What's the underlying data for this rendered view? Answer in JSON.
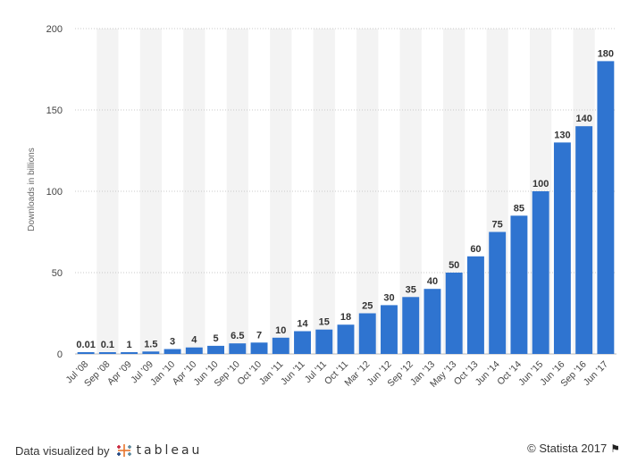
{
  "chart_data": {
    "type": "bar",
    "ylabel": "Downloads in billions",
    "ylim": [
      0,
      200
    ],
    "yticks": [
      0,
      50,
      100,
      150,
      200
    ],
    "categories": [
      "Jul '08",
      "Sep '08",
      "Apr '09",
      "Jul '09",
      "Jan '10",
      "Apr '10",
      "Jun '10",
      "Sep '10",
      "Oct '10",
      "Jan '11",
      "Jun '11",
      "Jul '11",
      "Oct '11",
      "Mar '12",
      "Jun '12",
      "Sep '12",
      "Jan '13",
      "May '13",
      "Oct '13",
      "Jun '14",
      "Oct '14",
      "Jun '15",
      "Jun '16",
      "Sep '16",
      "Jun '17"
    ],
    "values": [
      0.01,
      0.1,
      1,
      1.5,
      3,
      4,
      5,
      6.5,
      7,
      10,
      14,
      15,
      18,
      25,
      30,
      35,
      40,
      50,
      60,
      75,
      85,
      100,
      130,
      140,
      180
    ],
    "value_labels": [
      "0.01",
      "0.1",
      "1",
      "1.5",
      "3",
      "4",
      "5",
      "6.5",
      "7",
      "10",
      "14",
      "15",
      "18",
      "25",
      "30",
      "35",
      "40",
      "50",
      "60",
      "75",
      "85",
      "100",
      "130",
      "140",
      "180"
    ],
    "bar_color": "#2f74d0",
    "grid": true
  },
  "footer": {
    "credit_text": "Data visualized by",
    "brand": "tableau",
    "copyright": "© Statista 2017"
  },
  "icons": {
    "brand_logo": "tableau-logo-icon",
    "flag": "flag-icon"
  }
}
